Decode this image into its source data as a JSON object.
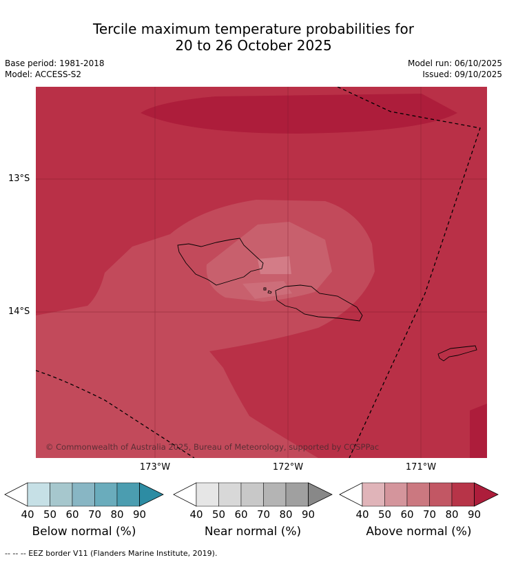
{
  "title": {
    "line1": "Tercile maximum temperature probabilities for",
    "line2": "20 to 26 October 2025"
  },
  "meta_left": {
    "base_period": "Base period: 1981-2018",
    "model": "Model: ACCESS-S2"
  },
  "meta_right": {
    "model_run": "Model run: 06/10/2025",
    "issued": "Issued: 09/10/2025"
  },
  "map": {
    "latitude_labels": [
      "13°S",
      "14°S"
    ],
    "longitude_labels": [
      "173°W",
      "172°W",
      "171°W"
    ],
    "copyright": "© Commonwealth of Australia 2025, Bureau of Meteorology, supported by COSPPac",
    "colors": {
      "background": "#b93047",
      "dark": "#ad1d3b",
      "band80": "#c24a5b",
      "band70": "#c8606d",
      "band60": "#d37c87",
      "lightest": "#dc9aa4"
    }
  },
  "colorbars": [
    {
      "name": "Below normal (%)",
      "ticks": [
        "40",
        "50",
        "60",
        "70",
        "80",
        "90"
      ],
      "colors": [
        "#c6e0e6",
        "#a6c7cd",
        "#88b6c4",
        "#6aacbc",
        "#4b9db0",
        "#2d8ca3"
      ]
    },
    {
      "name": "Near normal (%)",
      "ticks": [
        "40",
        "50",
        "60",
        "70",
        "80",
        "90"
      ],
      "colors": [
        "#e6e6e6",
        "#d8d8d8",
        "#c8c8c8",
        "#b4b4b4",
        "#a0a0a0",
        "#888888"
      ]
    },
    {
      "name": "Above normal (%)",
      "ticks": [
        "40",
        "50",
        "60",
        "70",
        "80",
        "90"
      ],
      "colors": [
        "#e0b4b9",
        "#d4959c",
        "#cb7880",
        "#c25764",
        "#b73448",
        "#ad1d3b"
      ]
    }
  ],
  "footnote": "--  --  -- EEZ border V11 (Flanders Marine Institute, 2019)."
}
